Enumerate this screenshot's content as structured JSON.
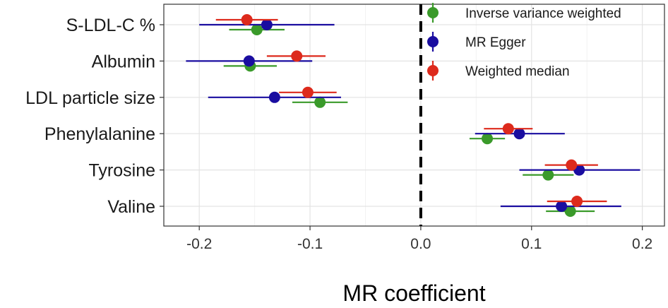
{
  "chart_data": {
    "type": "forest",
    "xlabel": "MR coefficient",
    "xlim": [
      -0.232,
      0.22
    ],
    "x_ticks": [
      -0.2,
      -0.1,
      0.0,
      0.1,
      0.2
    ],
    "x_tick_labels": [
      "-0.2",
      "-0.1",
      "0.0",
      "0.1",
      "0.2"
    ],
    "reference_line": 0.0,
    "categories": [
      "S-LDL-C %",
      "Albumin",
      "LDL particle size",
      "Phenylalanine",
      "Tyrosine",
      "Valine"
    ],
    "legend_position": "top-right",
    "series": [
      {
        "name": "Inverse variance weighted",
        "color": "#3a9a2a",
        "estimates": [
          -0.148,
          -0.154,
          -0.091,
          0.06,
          0.115,
          0.135
        ],
        "lower": [
          -0.173,
          -0.178,
          -0.116,
          0.044,
          0.092,
          0.113
        ],
        "upper": [
          -0.123,
          -0.13,
          -0.066,
          0.076,
          0.138,
          0.157
        ]
      },
      {
        "name": "MR Egger",
        "color": "#1a0da0",
        "estimates": [
          -0.139,
          -0.155,
          -0.132,
          0.089,
          0.143,
          0.127
        ],
        "lower": [
          -0.2,
          -0.212,
          -0.192,
          0.049,
          0.089,
          0.072
        ],
        "upper": [
          -0.078,
          -0.098,
          -0.072,
          0.13,
          0.198,
          0.181
        ]
      },
      {
        "name": "Weighted median",
        "color": "#dd2a1c",
        "estimates": [
          -0.157,
          -0.112,
          -0.102,
          0.079,
          0.136,
          0.141
        ],
        "lower": [
          -0.185,
          -0.139,
          -0.128,
          0.057,
          0.112,
          0.114
        ],
        "upper": [
          -0.129,
          -0.086,
          -0.076,
          0.101,
          0.16,
          0.168
        ]
      }
    ]
  }
}
